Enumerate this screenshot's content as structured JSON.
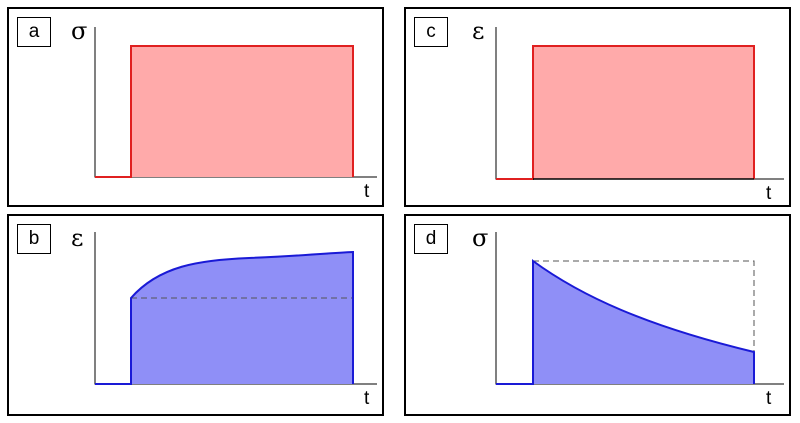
{
  "panels": [
    {
      "tag": "a",
      "y_label": "σ",
      "x_label": "t",
      "color": "#e02020",
      "fill": "#ffaaaa",
      "curve": "step"
    },
    {
      "tag": "b",
      "y_label": "ε",
      "x_label": "t",
      "color": "#1a1ad6",
      "fill": "#8f8ff7",
      "curve": "creep"
    },
    {
      "tag": "c",
      "y_label": "ε",
      "x_label": "t",
      "color": "#e02020",
      "fill": "#ffaaaa",
      "curve": "step"
    },
    {
      "tag": "d",
      "y_label": "σ",
      "x_label": "t",
      "color": "#1a1ad6",
      "fill": "#8f8ff7",
      "curve": "relaxation"
    }
  ],
  "colors": {
    "input_line": "#e02020",
    "input_fill": "#ffaaaa",
    "response_line": "#1a1ad6",
    "response_fill": "#8f8ff7",
    "guide_dash": "#555555"
  }
}
